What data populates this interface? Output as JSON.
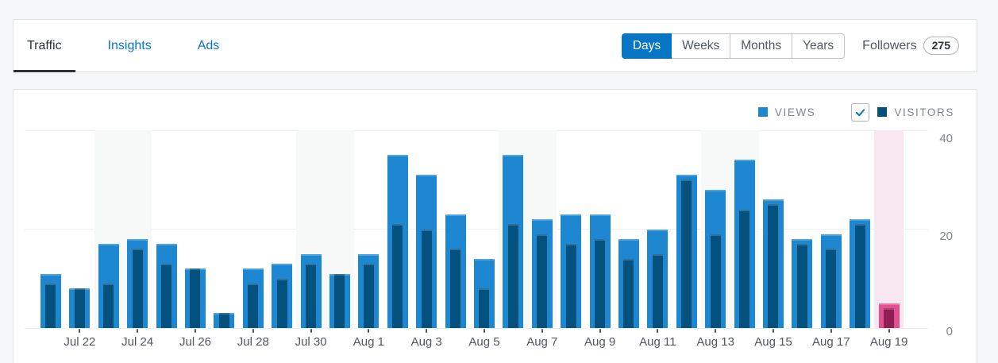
{
  "nav": {
    "tabs": [
      {
        "label": "Traffic",
        "active": true
      },
      {
        "label": "Insights",
        "active": false
      },
      {
        "label": "Ads",
        "active": false
      }
    ],
    "period_buttons": [
      {
        "label": "Days",
        "selected": true
      },
      {
        "label": "Weeks",
        "selected": false
      },
      {
        "label": "Months",
        "selected": false
      },
      {
        "label": "Years",
        "selected": false
      }
    ],
    "followers": {
      "label": "Followers",
      "count": "275"
    }
  },
  "legend": {
    "views_label": "VIEWS",
    "visitors_label": "VISITORS",
    "visitors_checkbox_checked": true
  },
  "colors": {
    "primary_blue": "#0675c4",
    "views_bar": "#1e87d2",
    "visitors_bar": "#05517e",
    "today_views_bar": "#e2518d",
    "today_visitors_bar": "#8f1d56",
    "today_column_background": "#f8e7ee",
    "weekend_column_background": "#f7f8f8",
    "page_background": "#f5f6f7"
  },
  "chart_data": {
    "type": "bar",
    "x": [
      "Jul 21",
      "Jul 22",
      "Jul 23",
      "Jul 24",
      "Jul 25",
      "Jul 26",
      "Jul 27",
      "Jul 28",
      "Jul 29",
      "Jul 30",
      "Jul 31",
      "Aug 1",
      "Aug 2",
      "Aug 3",
      "Aug 4",
      "Aug 5",
      "Aug 6",
      "Aug 7",
      "Aug 8",
      "Aug 9",
      "Aug 10",
      "Aug 11",
      "Aug 12",
      "Aug 13",
      "Aug 14",
      "Aug 15",
      "Aug 16",
      "Aug 17",
      "Aug 18",
      "Aug 19"
    ],
    "series": [
      {
        "name": "VIEWS",
        "values": [
          11,
          8,
          17,
          18,
          17,
          12,
          3,
          12,
          13,
          15,
          11,
          15,
          35,
          31,
          23,
          14,
          35,
          22,
          23,
          23,
          18,
          20,
          31,
          28,
          34,
          26,
          18,
          19,
          22,
          5
        ]
      },
      {
        "name": "VISITORS",
        "values": [
          9,
          8,
          9,
          16,
          13,
          12,
          3,
          9,
          10,
          13,
          11,
          13,
          21,
          20,
          16,
          8,
          21,
          19,
          17,
          18,
          14,
          15,
          30,
          19,
          24,
          25,
          17,
          16,
          21,
          4
        ]
      }
    ],
    "ylim": [
      0,
      40
    ],
    "yticks": [
      "40",
      "20",
      "0"
    ],
    "x_tick_labels": [
      "Jul 22",
      "Jul 24",
      "Jul 26",
      "Jul 28",
      "Jul 30",
      "Aug 1",
      "Aug 3",
      "Aug 5",
      "Aug 7",
      "Aug 9",
      "Aug 11",
      "Aug 13",
      "Aug 15",
      "Aug 17",
      "Aug 19"
    ],
    "x_labeled_every": 2,
    "weekend_indices": [
      2,
      3,
      9,
      10,
      16,
      17,
      23,
      24
    ],
    "highlighted_index": 29,
    "grid": "horizontal",
    "legend_position": "top-right"
  }
}
